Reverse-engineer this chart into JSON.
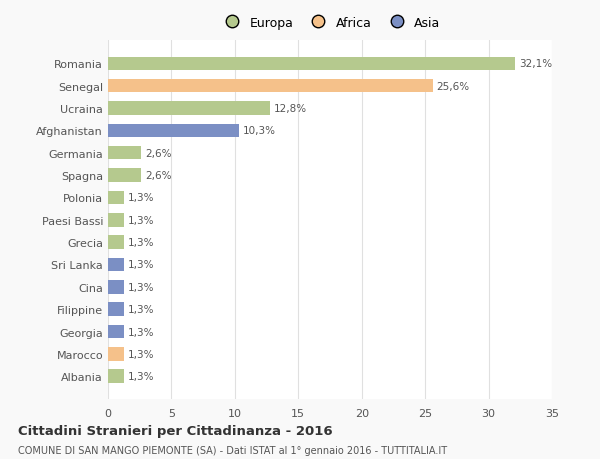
{
  "categories": [
    "Albania",
    "Marocco",
    "Georgia",
    "Filippine",
    "Cina",
    "Sri Lanka",
    "Grecia",
    "Paesi Bassi",
    "Polonia",
    "Spagna",
    "Germania",
    "Afghanistan",
    "Ucraina",
    "Senegal",
    "Romania"
  ],
  "values": [
    1.3,
    1.3,
    1.3,
    1.3,
    1.3,
    1.3,
    1.3,
    1.3,
    1.3,
    2.6,
    2.6,
    10.3,
    12.8,
    25.6,
    32.1
  ],
  "labels": [
    "1,3%",
    "1,3%",
    "1,3%",
    "1,3%",
    "1,3%",
    "1,3%",
    "1,3%",
    "1,3%",
    "1,3%",
    "2,6%",
    "2,6%",
    "10,3%",
    "12,8%",
    "25,6%",
    "32,1%"
  ],
  "colors": [
    "#b5c98e",
    "#f5c18a",
    "#7b8fc4",
    "#7b8fc4",
    "#7b8fc4",
    "#7b8fc4",
    "#b5c98e",
    "#b5c98e",
    "#b5c98e",
    "#b5c98e",
    "#b5c98e",
    "#7b8fc4",
    "#b5c98e",
    "#f5c18a",
    "#b5c98e"
  ],
  "legend_labels": [
    "Europa",
    "Africa",
    "Asia"
  ],
  "legend_colors": [
    "#b5c98e",
    "#f5c18a",
    "#7b8fc4"
  ],
  "title": "Cittadini Stranieri per Cittadinanza - 2016",
  "subtitle": "COMUNE DI SAN MANGO PIEMONTE (SA) - Dati ISTAT al 1° gennaio 2016 - TUTTITALIA.IT",
  "xlim": [
    0,
    35
  ],
  "xticks": [
    0,
    5,
    10,
    15,
    20,
    25,
    30,
    35
  ],
  "background_color": "#f9f9f9",
  "bar_background": "#ffffff",
  "grid_color": "#e0e0e0",
  "text_color": "#555555"
}
